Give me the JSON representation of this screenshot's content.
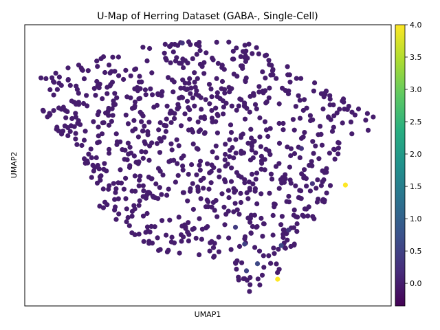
{
  "chart_data": {
    "type": "scatter",
    "title": "U-Map of Herring Dataset (GABA-, Single-Cell)",
    "xlabel": "UMAP1",
    "ylabel": "UMAP2",
    "xlim": [
      0,
      100
    ],
    "ylim": [
      0,
      100
    ],
    "show_ticks": false,
    "grid": false,
    "colorbar": {
      "colormap": "viridis",
      "range": [
        -0.35,
        4.0
      ],
      "ticks": [
        0.0,
        0.5,
        1.0,
        1.5,
        2.0,
        2.5,
        3.0,
        3.5,
        4.0
      ],
      "tick_labels": [
        "0.0",
        "0.5",
        "1.0",
        "1.5",
        "2.0",
        "2.5",
        "3.0",
        "3.5",
        "4.0"
      ]
    },
    "colors": {
      "viridis_min": "#440154",
      "viridis_max": "#fde725"
    },
    "n_background_points": 900,
    "highlighted_points": [
      {
        "x": 87.5,
        "y": 43.0,
        "value": 4.0
      },
      {
        "x": 69.0,
        "y": 9.5,
        "value": 4.0
      },
      {
        "x": 70.0,
        "y": 21.5,
        "value": 0.6
      },
      {
        "x": 60.0,
        "y": 22.0,
        "value": 0.5
      },
      {
        "x": 63.5,
        "y": 15.0,
        "value": 0.6
      },
      {
        "x": 60.5,
        "y": 12.5,
        "value": 0.5
      },
      {
        "x": 57.5,
        "y": 28.0,
        "value": 0.4
      },
      {
        "x": 78.5,
        "y": 43.5,
        "value": 0.3
      },
      {
        "x": 75.5,
        "y": 56.0,
        "value": 0.3
      },
      {
        "x": 43.0,
        "y": 93.5,
        "value": 0.3
      },
      {
        "x": 72.0,
        "y": 27.0,
        "value": 0.3
      }
    ]
  }
}
